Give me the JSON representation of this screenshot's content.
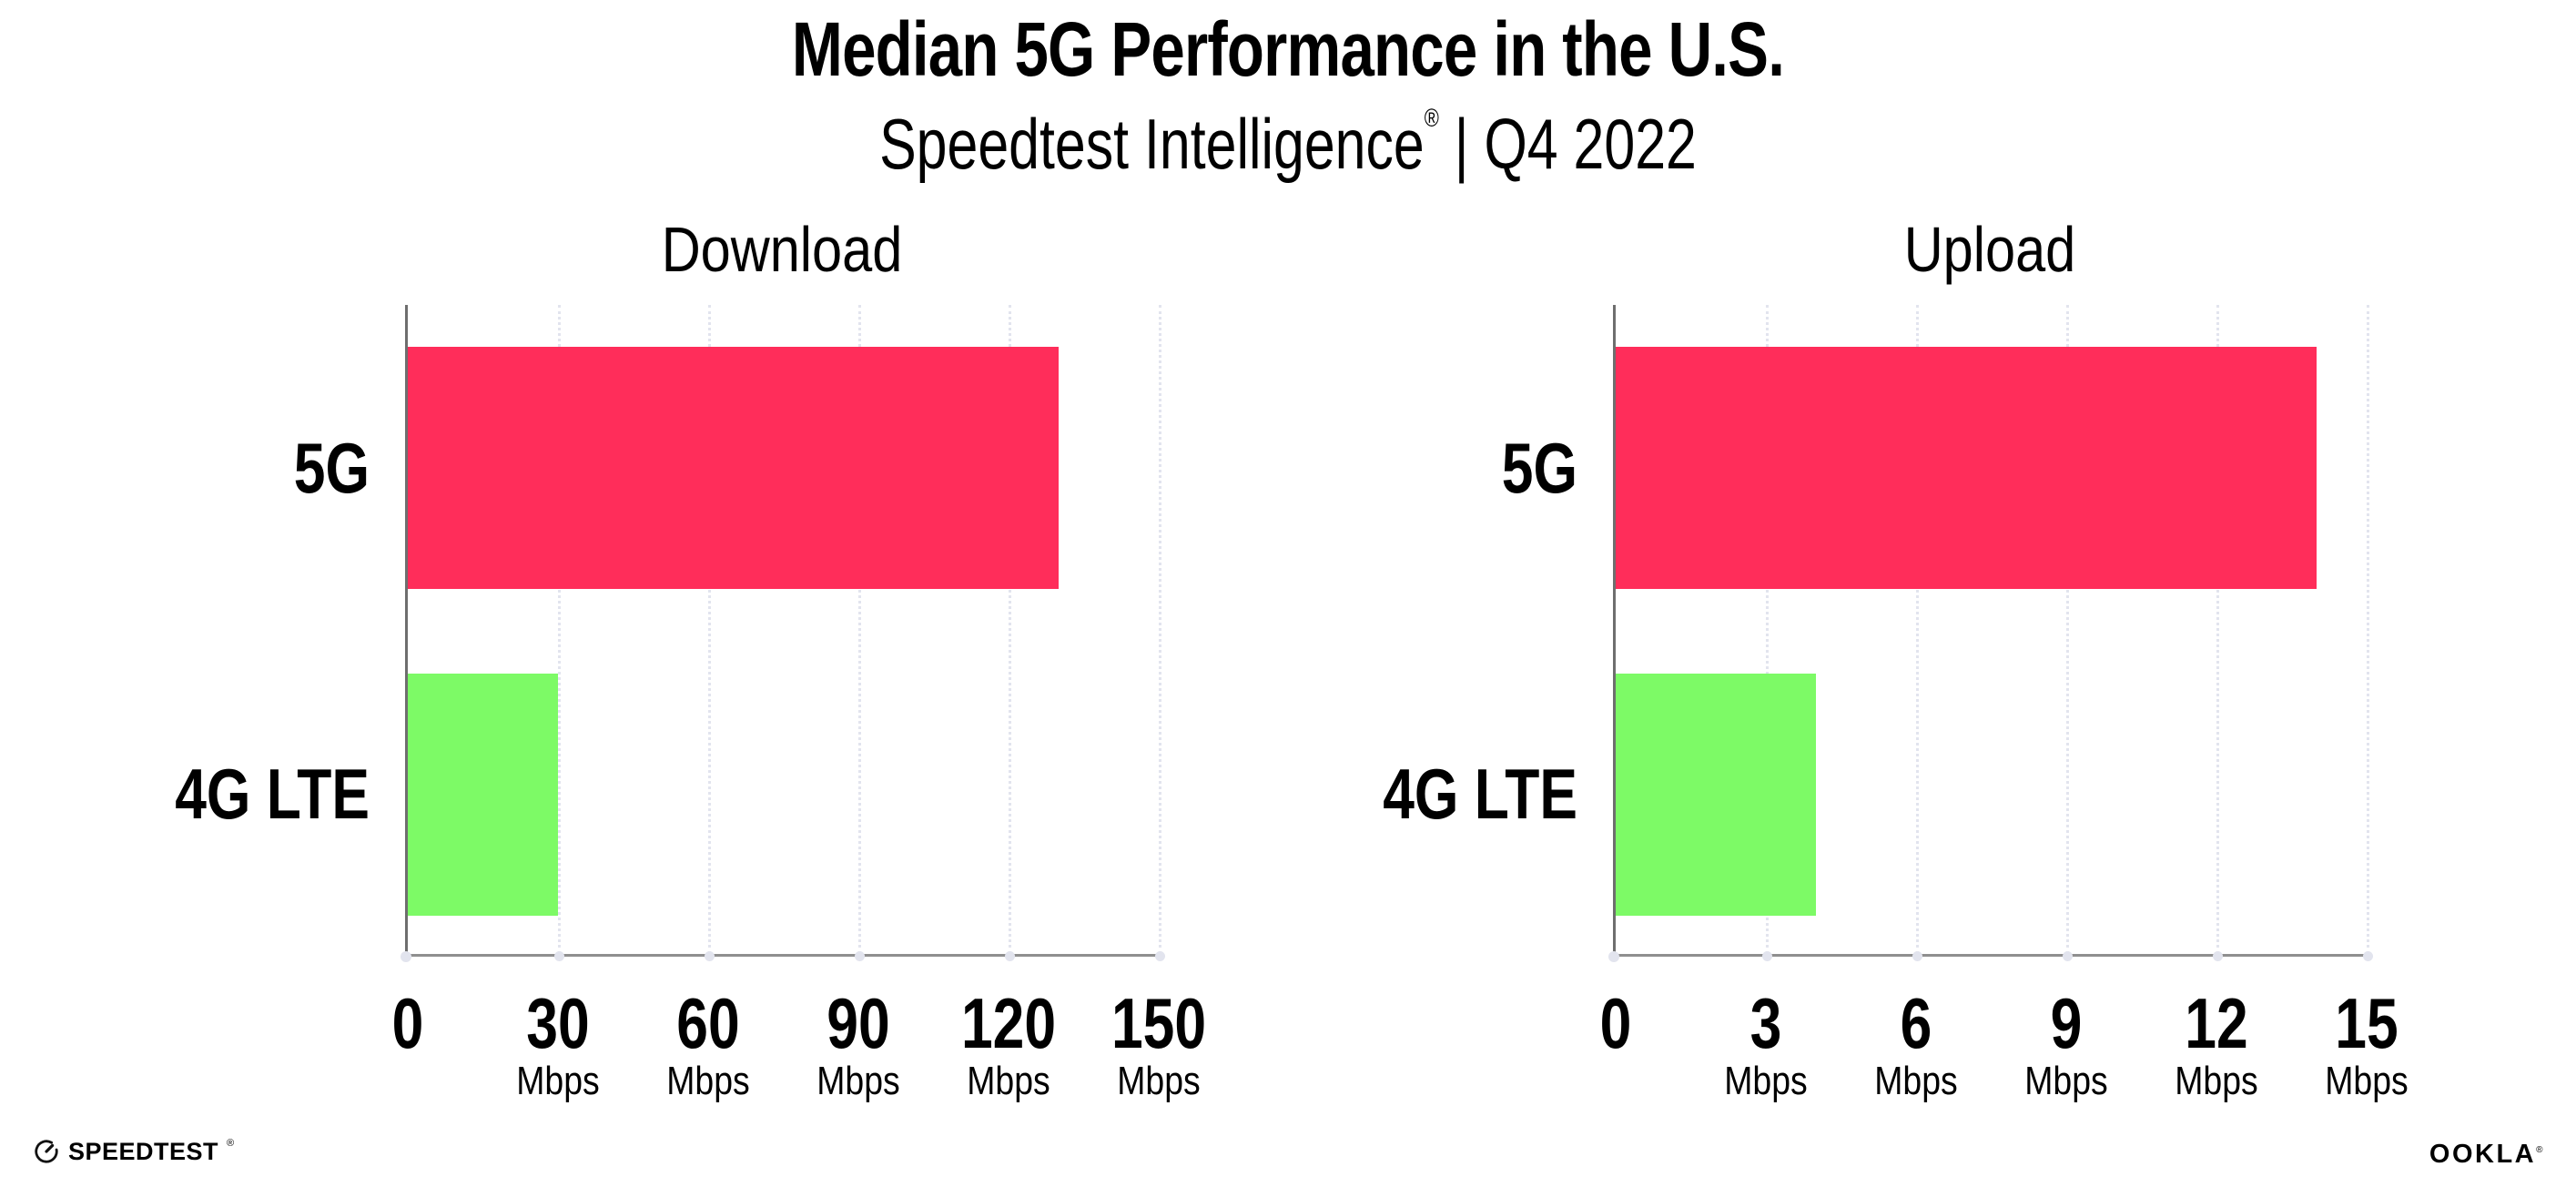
{
  "header": {
    "title": "Median 5G Performance in the U.S.",
    "subtitle_brand": "Speedtest Intelligence",
    "subtitle_registered": "®",
    "subtitle_rest": " | Q4 2022"
  },
  "chart_data": [
    {
      "type": "bar",
      "orientation": "horizontal",
      "title": "Download",
      "categories": [
        "5G",
        "4G LTE"
      ],
      "values": [
        130,
        30
      ],
      "unit": "Mbps",
      "xlim": [
        0,
        150
      ],
      "xticks": [
        0,
        30,
        60,
        90,
        120,
        150
      ],
      "ticks": [
        {
          "label": "0",
          "unit": ""
        },
        {
          "label": "30",
          "unit": "Mbps"
        },
        {
          "label": "60",
          "unit": "Mbps"
        },
        {
          "label": "90",
          "unit": "Mbps"
        },
        {
          "label": "120",
          "unit": "Mbps"
        },
        {
          "label": "150",
          "unit": "Mbps"
        }
      ],
      "bar_colors": [
        "#FF2D5A",
        "#7DFA66"
      ],
      "grid": "dotted-vertical",
      "legend": "none"
    },
    {
      "type": "bar",
      "orientation": "horizontal",
      "title": "Upload",
      "categories": [
        "5G",
        "4G LTE"
      ],
      "values": [
        14,
        4
      ],
      "unit": "Mbps",
      "xlim": [
        0,
        15
      ],
      "xticks": [
        0,
        3,
        6,
        9,
        12,
        15
      ],
      "ticks": [
        {
          "label": "0",
          "unit": ""
        },
        {
          "label": "3",
          "unit": "Mbps"
        },
        {
          "label": "6",
          "unit": "Mbps"
        },
        {
          "label": "9",
          "unit": "Mbps"
        },
        {
          "label": "12",
          "unit": "Mbps"
        },
        {
          "label": "15",
          "unit": "Mbps"
        }
      ],
      "bar_colors": [
        "#FF2D5A",
        "#7DFA66"
      ],
      "grid": "dotted-vertical",
      "legend": "none"
    }
  ],
  "footer": {
    "speedtest_label": "SPEEDTEST",
    "speedtest_registered": "®",
    "ookla_label": "OOKLA",
    "ookla_registered": "®"
  },
  "colors": {
    "bar_5g": "#FF2D5A",
    "bar_4g_lte": "#7DFA66",
    "background": "#FFFFFF",
    "text": "#000000"
  }
}
